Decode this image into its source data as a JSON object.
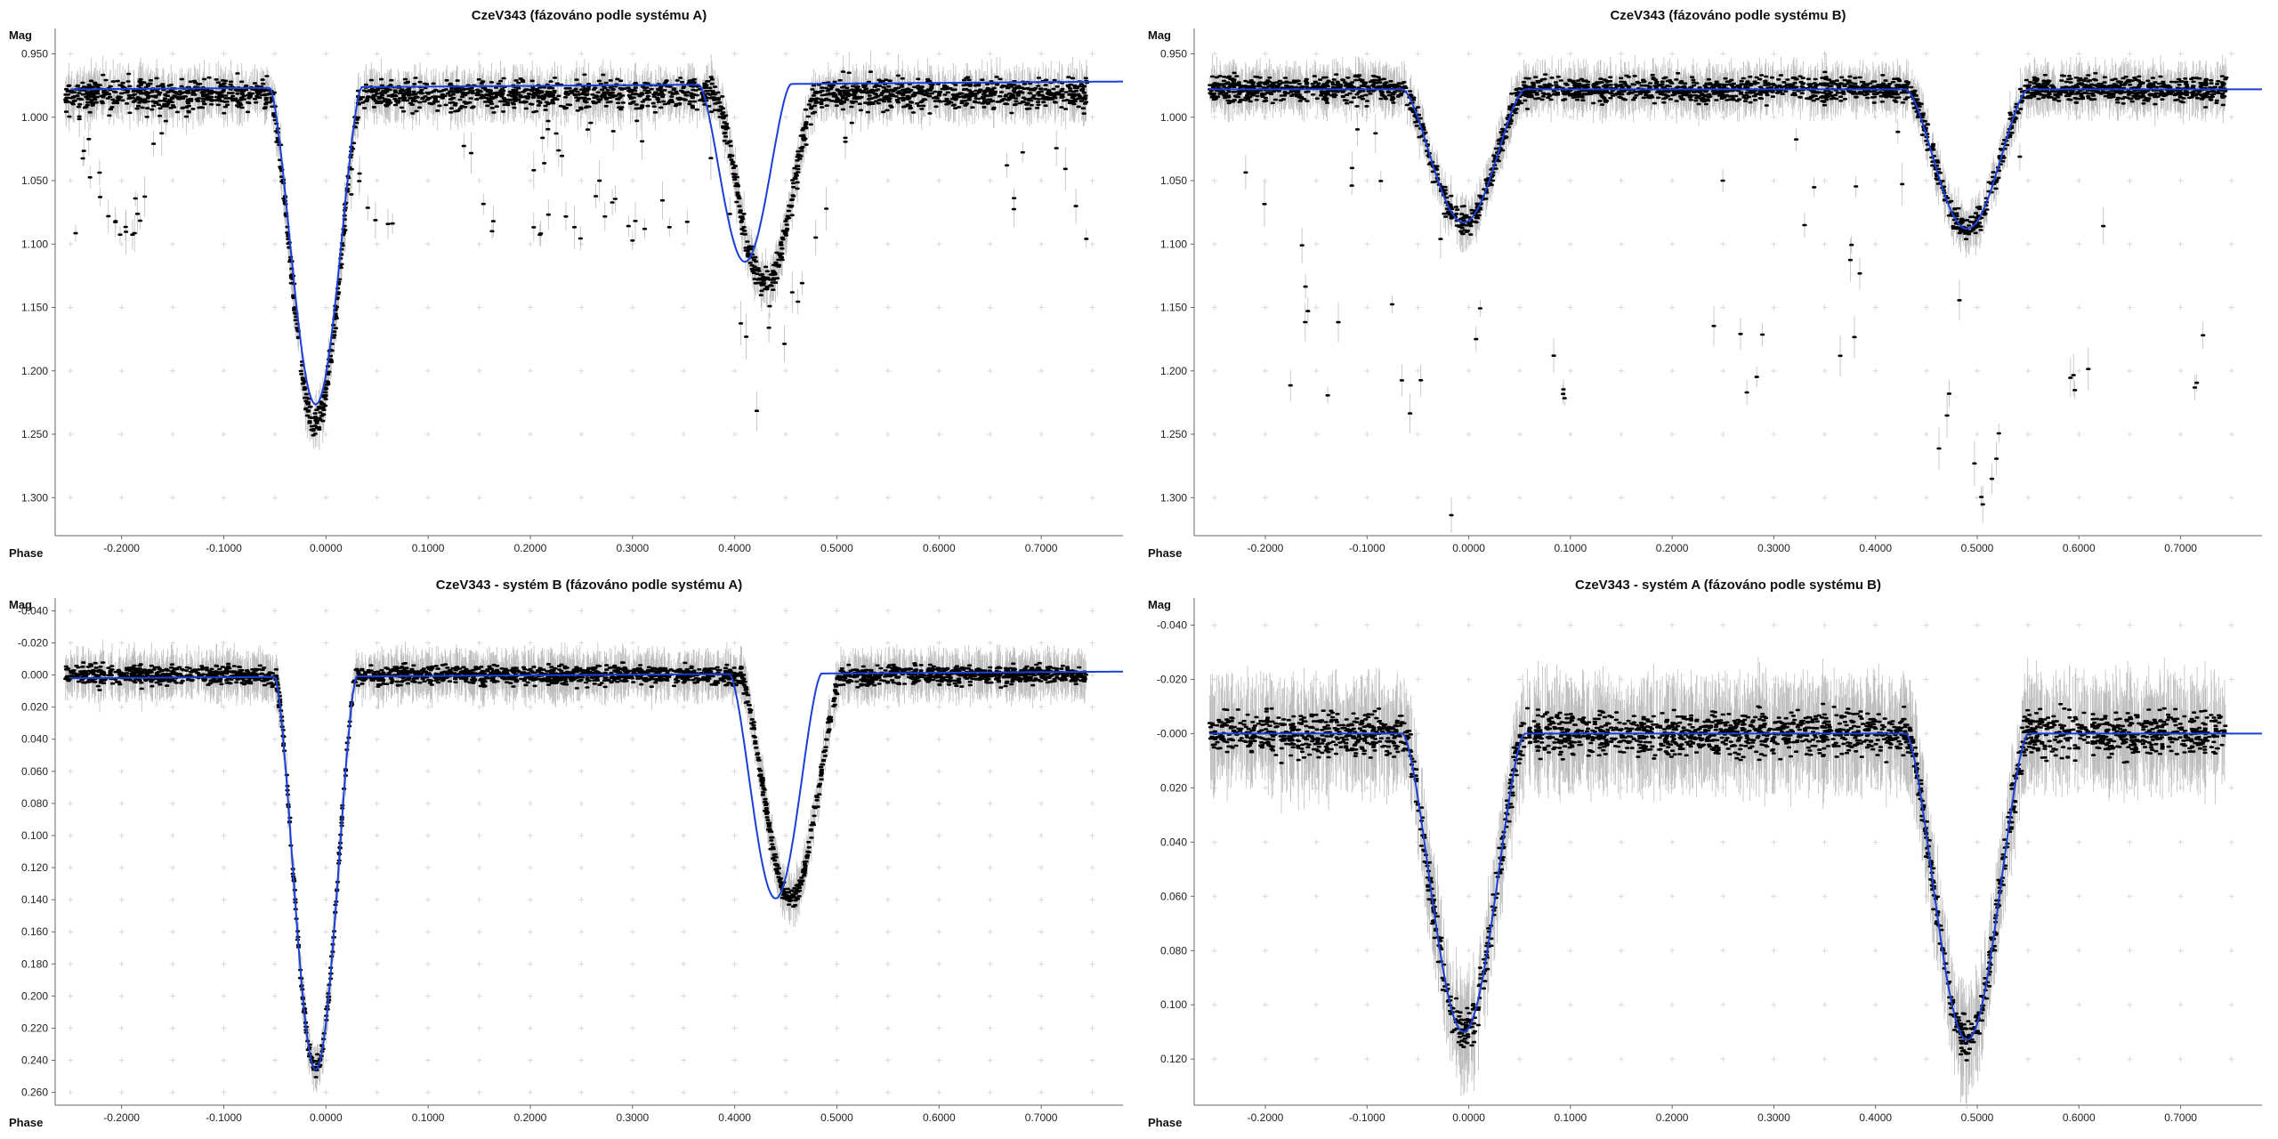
{
  "theme": {
    "background": "#ffffff",
    "model_color": "#1a3fd6",
    "point_color": "#000000",
    "errorbar_color": "#bdbdbd",
    "grid_color": "#d9d9d9"
  },
  "chart_data": [
    {
      "type": "scatter",
      "title": "CzeV343 (fázováno podle systému A)",
      "xlabel": "Phase",
      "ylabel": "Mag",
      "xlim": [
        -0.265,
        0.78
      ],
      "ylim": [
        1.33,
        0.93
      ],
      "x_ticks": [
        -0.2,
        -0.1,
        0.0,
        0.1,
        0.2,
        0.3,
        0.4,
        0.5,
        0.6,
        0.7
      ],
      "x_tick_labels": [
        "-0.2000",
        "-0.1000",
        "0.0000",
        "0.1000",
        "0.2000",
        "0.3000",
        "0.4000",
        "0.5000",
        "0.6000",
        "0.7000"
      ],
      "y_ticks": [
        0.95,
        1.0,
        1.05,
        1.1,
        1.15,
        1.2,
        1.25,
        1.3
      ],
      "y_tick_labels": [
        "0.950",
        "1.000",
        "1.050",
        "1.100",
        "1.150",
        "1.200",
        "1.250",
        "1.300"
      ],
      "grid": true,
      "legend": "none",
      "model": {
        "baseline": 0.975,
        "slope": -0.006,
        "eclipses": [
          {
            "center": -0.01,
            "depth": 0.25,
            "width": 0.045
          },
          {
            "center": 0.41,
            "depth": 0.14,
            "width": 0.045
          }
        ]
      },
      "scatter_trend": {
        "baseline": 0.982,
        "eclipses": [
          {
            "center": -0.01,
            "depth": 0.26,
            "width": 0.045
          },
          {
            "center": 0.43,
            "depth": 0.15,
            "width": 0.05
          }
        ],
        "extra_dip_depth": 0.11,
        "extra_dip_width": 0.055,
        "noise": 0.012,
        "errorbar": 0.012
      },
      "points_count": 2600
    },
    {
      "type": "scatter",
      "title": "CzeV343 (fázováno podle systému B)",
      "xlabel": "Phase",
      "ylabel": "Mag",
      "xlim": [
        -0.27,
        0.78
      ],
      "ylim": [
        1.33,
        0.93
      ],
      "x_ticks": [
        -0.2,
        -0.1,
        0.0,
        0.1,
        0.2,
        0.3,
        0.4,
        0.5,
        0.6,
        0.7
      ],
      "x_tick_labels": [
        "-0.2000",
        "-0.1000",
        "0.0000",
        "0.1000",
        "0.2000",
        "0.3000",
        "0.4000",
        "0.5000",
        "0.6000",
        "0.7000"
      ],
      "y_ticks": [
        0.95,
        1.0,
        1.05,
        1.1,
        1.15,
        1.2,
        1.25,
        1.3
      ],
      "y_tick_labels": [
        "0.950",
        "1.000",
        "1.050",
        "1.100",
        "1.150",
        "1.200",
        "1.250",
        "1.300"
      ],
      "grid": true,
      "legend": "none",
      "model": {
        "baseline": 0.978,
        "slope": 0.0,
        "eclipses": [
          {
            "center": -0.005,
            "depth": 0.105,
            "width": 0.06
          },
          {
            "center": 0.49,
            "depth": 0.11,
            "width": 0.06
          }
        ]
      },
      "scatter_trend": {
        "baseline": 0.978,
        "eclipses": [
          {
            "center": -0.005,
            "depth": 0.105,
            "width": 0.06
          },
          {
            "center": 0.49,
            "depth": 0.11,
            "width": 0.06
          }
        ],
        "extra_dip_depth": 0.24,
        "extra_dip_width": 0.04,
        "noise": 0.01,
        "errorbar": 0.012
      },
      "points_count": 2600
    },
    {
      "type": "scatter",
      "title": "CzeV343 - systém B (fázováno podle systému A)",
      "xlabel": "Phase",
      "ylabel": "Mag",
      "xlim": [
        -0.265,
        0.78
      ],
      "ylim": [
        0.268,
        -0.048
      ],
      "x_ticks": [
        -0.2,
        -0.1,
        0.0,
        0.1,
        0.2,
        0.3,
        0.4,
        0.5,
        0.6,
        0.7
      ],
      "x_tick_labels": [
        "-0.2000",
        "-0.1000",
        "0.0000",
        "0.1000",
        "0.2000",
        "0.3000",
        "0.4000",
        "0.5000",
        "0.6000",
        "0.7000"
      ],
      "y_ticks": [
        -0.04,
        -0.02,
        0.0,
        0.02,
        0.04,
        0.06,
        0.08,
        0.1,
        0.12,
        0.14,
        0.16,
        0.18,
        0.2,
        0.22,
        0.24,
        0.26
      ],
      "y_tick_labels": [
        "-0.040",
        "-0.020",
        "0.000",
        "0.020",
        "0.040",
        "0.060",
        "0.080",
        "0.100",
        "0.120",
        "0.140",
        "0.160",
        "0.180",
        "0.200",
        "0.220",
        "0.240",
        "0.260"
      ],
      "grid": true,
      "legend": "none",
      "model": {
        "baseline": 0.0,
        "slope": -0.004,
        "eclipses": [
          {
            "center": -0.01,
            "depth": 0.245,
            "width": 0.04
          },
          {
            "center": 0.44,
            "depth": 0.14,
            "width": 0.045
          }
        ]
      },
      "scatter_trend": {
        "baseline": 0.0,
        "eclipses": [
          {
            "center": -0.01,
            "depth": 0.245,
            "width": 0.04
          },
          {
            "center": 0.455,
            "depth": 0.14,
            "width": 0.05
          }
        ],
        "extra_dip_depth": 0.0,
        "extra_dip_width": 0.04,
        "noise": 0.006,
        "errorbar": 0.01
      },
      "points_count": 2600
    },
    {
      "type": "scatter",
      "title": "CzeV343 - systém A (fázováno podle systému B)",
      "xlabel": "Phase",
      "ylabel": "Mag",
      "xlim": [
        -0.27,
        0.78
      ],
      "ylim": [
        0.137,
        -0.05
      ],
      "x_ticks": [
        -0.2,
        -0.1,
        0.0,
        0.1,
        0.2,
        0.3,
        0.4,
        0.5,
        0.6,
        0.7
      ],
      "x_tick_labels": [
        "-0.2000",
        "-0.1000",
        "0.0000",
        "0.1000",
        "0.2000",
        "0.3000",
        "0.4000",
        "0.5000",
        "0.6000",
        "0.7000"
      ],
      "y_ticks": [
        -0.04,
        -0.02,
        0.0,
        0.02,
        0.04,
        0.06,
        0.08,
        0.1,
        0.12
      ],
      "y_tick_labels": [
        "-0.040",
        "-0.020",
        "-0.000",
        "0.020",
        "0.040",
        "0.060",
        "0.080",
        "0.100",
        "0.120"
      ],
      "grid": true,
      "legend": "none",
      "model": {
        "baseline": 0.0,
        "slope": 0.0,
        "eclipses": [
          {
            "center": -0.005,
            "depth": 0.11,
            "width": 0.06
          },
          {
            "center": 0.49,
            "depth": 0.113,
            "width": 0.06
          }
        ]
      },
      "scatter_trend": {
        "baseline": 0.0,
        "eclipses": [
          {
            "center": -0.005,
            "depth": 0.11,
            "width": 0.06
          },
          {
            "center": 0.49,
            "depth": 0.113,
            "width": 0.06
          }
        ],
        "extra_dip_depth": 0.0,
        "extra_dip_width": 0.04,
        "noise": 0.008,
        "errorbar": 0.013
      },
      "points_count": 2600
    }
  ]
}
